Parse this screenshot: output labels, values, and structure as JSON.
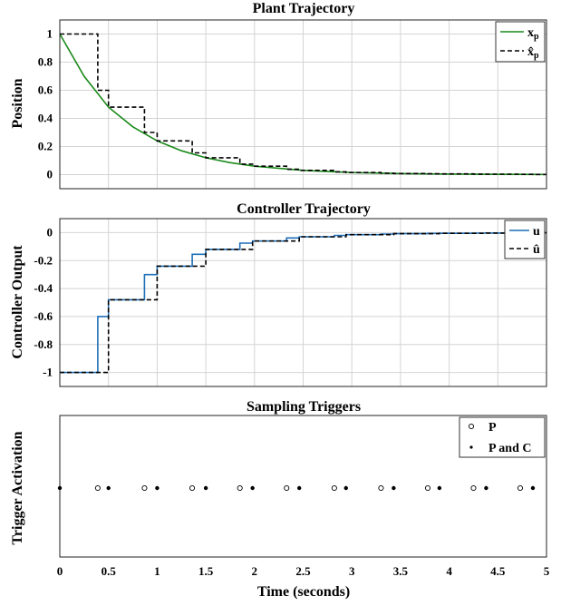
{
  "chart_data": [
    {
      "type": "line",
      "title": "Plant Trajectory",
      "ylabel": "Position",
      "xlabel": "",
      "xlim": [
        0,
        5
      ],
      "ylim": [
        -0.1,
        1.1
      ],
      "yticks": [
        "0",
        "0.2",
        "0.4",
        "0.6",
        "0.8",
        "1"
      ],
      "xticks": [
        "0",
        "0.5",
        "1",
        "1.5",
        "2",
        "2.5",
        "3",
        "3.5",
        "4",
        "4.5",
        "5"
      ],
      "grid": true,
      "legend": "top-right",
      "series": [
        {
          "name": "x_p",
          "style": "solid",
          "color": "#1a8a1a",
          "x": [
            0,
            0.25,
            0.5,
            0.75,
            1,
            1.25,
            1.5,
            1.75,
            2,
            2.5,
            3,
            3.5,
            4,
            4.5,
            5
          ],
          "y": [
            1,
            0.7,
            0.48,
            0.34,
            0.24,
            0.17,
            0.12,
            0.085,
            0.06,
            0.03,
            0.015,
            0.0075,
            0.004,
            0.002,
            0.001
          ]
        },
        {
          "name": "x̂_p",
          "style": "dashed",
          "color": "#000000",
          "x": [
            0,
            0.39,
            0.39,
            0.5,
            0.5,
            0.87,
            0.87,
            1.0,
            1.0,
            1.36,
            1.36,
            1.5,
            1.5,
            1.85,
            1.85,
            1.98,
            1.98,
            2.33,
            2.33,
            2.46,
            2.46,
            2.82,
            2.82,
            2.94,
            2.94,
            3.3,
            3.3,
            3.43,
            3.43,
            3.78,
            3.78,
            3.9,
            3.9,
            4.25,
            4.25,
            4.38,
            4.38,
            4.73,
            4.73,
            4.86,
            4.86,
            5
          ],
          "y": [
            1,
            1,
            0.6,
            0.6,
            0.48,
            0.48,
            0.3,
            0.3,
            0.24,
            0.24,
            0.155,
            0.155,
            0.12,
            0.12,
            0.075,
            0.075,
            0.06,
            0.06,
            0.038,
            0.038,
            0.03,
            0.03,
            0.02,
            0.02,
            0.015,
            0.015,
            0.01,
            0.01,
            0.008,
            0.008,
            0.006,
            0.006,
            0.005,
            0.005,
            0.004,
            0.004,
            0.003,
            0.003,
            0.002,
            0.002,
            0.0015,
            0.0015
          ]
        }
      ]
    },
    {
      "type": "line",
      "title": "Controller Trajectory",
      "ylabel": "Controller Output",
      "xlabel": "",
      "xlim": [
        0,
        5
      ],
      "ylim": [
        -1.1,
        0.1
      ],
      "yticks": [
        "-1",
        "-0.8",
        "-0.6",
        "-0.4",
        "-0.2",
        "0"
      ],
      "xticks": [
        "0",
        "0.5",
        "1",
        "1.5",
        "2",
        "2.5",
        "3",
        "3.5",
        "4",
        "4.5",
        "5"
      ],
      "grid": true,
      "legend": "top-right",
      "series": [
        {
          "name": "u",
          "style": "solid",
          "color": "#1f6fb8",
          "x": [
            0,
            0.39,
            0.39,
            0.5,
            0.5,
            0.87,
            0.87,
            1.0,
            1.0,
            1.36,
            1.36,
            1.5,
            1.5,
            1.85,
            1.85,
            1.98,
            1.98,
            2.33,
            2.33,
            2.46,
            2.46,
            2.82,
            2.82,
            2.94,
            2.94,
            3.3,
            3.3,
            3.43,
            3.43,
            3.78,
            3.78,
            3.9,
            3.9,
            4.25,
            4.25,
            4.38,
            4.38,
            4.73,
            4.73,
            4.86,
            4.86,
            5
          ],
          "y": [
            -1,
            -1,
            -0.6,
            -0.6,
            -0.48,
            -0.48,
            -0.3,
            -0.3,
            -0.24,
            -0.24,
            -0.155,
            -0.155,
            -0.12,
            -0.12,
            -0.075,
            -0.075,
            -0.06,
            -0.06,
            -0.038,
            -0.038,
            -0.03,
            -0.03,
            -0.02,
            -0.02,
            -0.015,
            -0.015,
            -0.01,
            -0.01,
            -0.008,
            -0.008,
            -0.006,
            -0.006,
            -0.005,
            -0.005,
            -0.004,
            -0.004,
            -0.003,
            -0.003,
            -0.002,
            -0.002,
            -0.0015,
            -0.0015
          ]
        },
        {
          "name": "û",
          "style": "dashed",
          "color": "#000000",
          "x": [
            0,
            0.5,
            0.5,
            1.0,
            1.0,
            1.5,
            1.5,
            1.98,
            1.98,
            2.46,
            2.46,
            2.94,
            2.94,
            3.43,
            3.43,
            3.9,
            3.9,
            4.38,
            4.38,
            4.86,
            4.86,
            5
          ],
          "y": [
            -1,
            -1,
            -0.48,
            -0.48,
            -0.24,
            -0.24,
            -0.12,
            -0.12,
            -0.06,
            -0.06,
            -0.03,
            -0.03,
            -0.015,
            -0.015,
            -0.008,
            -0.008,
            -0.005,
            -0.005,
            -0.003,
            -0.003,
            -0.0015,
            -0.0015
          ]
        }
      ]
    },
    {
      "type": "scatter",
      "title": "Sampling Triggers",
      "ylabel": "Trigger Activation",
      "xlabel": "Time (seconds)",
      "xlim": [
        0,
        5
      ],
      "xticks": [
        "0",
        "0.5",
        "1",
        "1.5",
        "2",
        "2.5",
        "3",
        "3.5",
        "4",
        "4.5",
        "5"
      ],
      "grid": false,
      "legend": "top-right",
      "series": [
        {
          "name": "P",
          "marker": "open-circle",
          "x": [
            0.39,
            0.87,
            1.36,
            1.85,
            2.33,
            2.82,
            3.3,
            3.78,
            4.25,
            4.73
          ]
        },
        {
          "name": "P and C",
          "marker": "dot",
          "x": [
            0,
            0.5,
            1.0,
            1.5,
            1.98,
            2.46,
            2.94,
            3.43,
            3.9,
            4.38,
            4.86
          ]
        }
      ]
    }
  ]
}
